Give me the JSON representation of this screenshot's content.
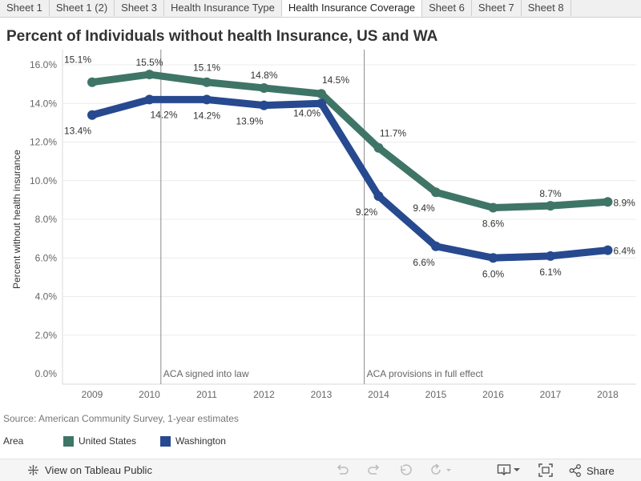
{
  "tabs": [
    {
      "label": "Sheet 1"
    },
    {
      "label": "Sheet 1 (2)"
    },
    {
      "label": "Sheet 3"
    },
    {
      "label": "Health Insurance Type"
    },
    {
      "label": "Health Insurance Coverage",
      "active": true
    },
    {
      "label": "Sheet 6"
    },
    {
      "label": "Sheet 7"
    },
    {
      "label": "Sheet 8"
    }
  ],
  "title": "Percent of Individuals without health Insurance, US and WA",
  "source": "Source: American Community Survey, 1-year estimates",
  "legend": {
    "title": "Area",
    "items": [
      {
        "label": "United States",
        "color": "#3f7566"
      },
      {
        "label": "Washington",
        "color": "#27498f"
      }
    ]
  },
  "footer": {
    "tableau_link": "View on Tableau Public",
    "share": "Share",
    "icons": [
      "undo-icon",
      "redo-icon",
      "revert-icon",
      "refresh-icon",
      "download-icon",
      "fullscreen-icon",
      "share-icon"
    ]
  },
  "chart_data": {
    "type": "line",
    "x": [
      "2009",
      "2010",
      "2011",
      "2012",
      "2013",
      "2014",
      "2015",
      "2016",
      "2017",
      "2018"
    ],
    "ylabel": "Percent without health insurance",
    "xlabel": "",
    "ylim": [
      0,
      16
    ],
    "yticks": [
      "0.0%",
      "2.0%",
      "4.0%",
      "6.0%",
      "8.0%",
      "10.0%",
      "12.0%",
      "14.0%",
      "16.0%"
    ],
    "grid": true,
    "series": [
      {
        "name": "United States",
        "color": "#3f7566",
        "values": [
          15.1,
          15.5,
          15.1,
          14.8,
          14.5,
          11.7,
          9.4,
          8.6,
          8.7,
          8.9
        ],
        "labels": [
          "15.1%",
          "15.5%",
          "15.1%",
          "14.8%",
          "14.5%",
          "11.7%",
          "9.4%",
          "8.6%",
          "8.7%",
          "8.9%"
        ]
      },
      {
        "name": "Washington",
        "color": "#27498f",
        "values": [
          13.4,
          14.2,
          14.2,
          13.9,
          14.0,
          9.2,
          6.6,
          6.0,
          6.1,
          6.4
        ],
        "labels": [
          "13.4%",
          "14.2%",
          "14.2%",
          "13.9%",
          "14.0%",
          "9.2%",
          "6.6%",
          "6.0%",
          "6.1%",
          "6.4%"
        ]
      }
    ],
    "annotations": [
      {
        "x": 2010.2,
        "text": "ACA signed into law"
      },
      {
        "x": 2013.75,
        "text": "ACA provisions in full effect"
      }
    ]
  }
}
